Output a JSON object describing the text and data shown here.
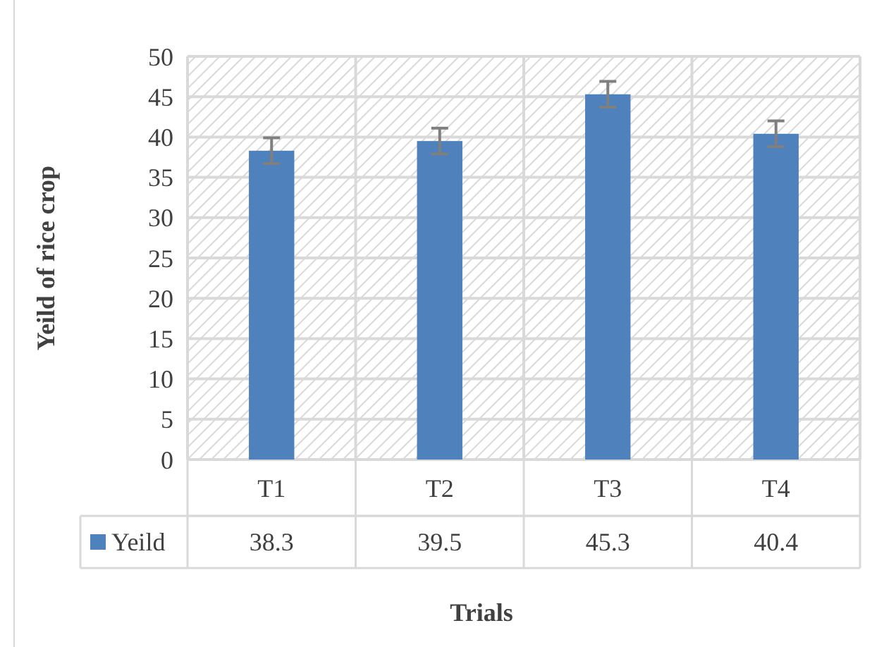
{
  "chart_data": {
    "type": "bar",
    "xlabel": "Trials",
    "ylabel": "Yeild of rice crop",
    "categories": [
      "T1",
      "T2",
      "T3",
      "T4"
    ],
    "series": [
      {
        "name": "Yeild",
        "color": "#4f81bd",
        "values": [
          38.3,
          39.5,
          45.3,
          40.4
        ],
        "errors": [
          1.6,
          1.6,
          1.6,
          1.6
        ]
      }
    ],
    "ylim": [
      0,
      50
    ],
    "yticks": [
      0,
      5,
      10,
      15,
      20,
      25,
      30,
      35,
      40,
      45,
      50
    ],
    "grid": true,
    "legend": "bottom",
    "data_labels": true
  }
}
